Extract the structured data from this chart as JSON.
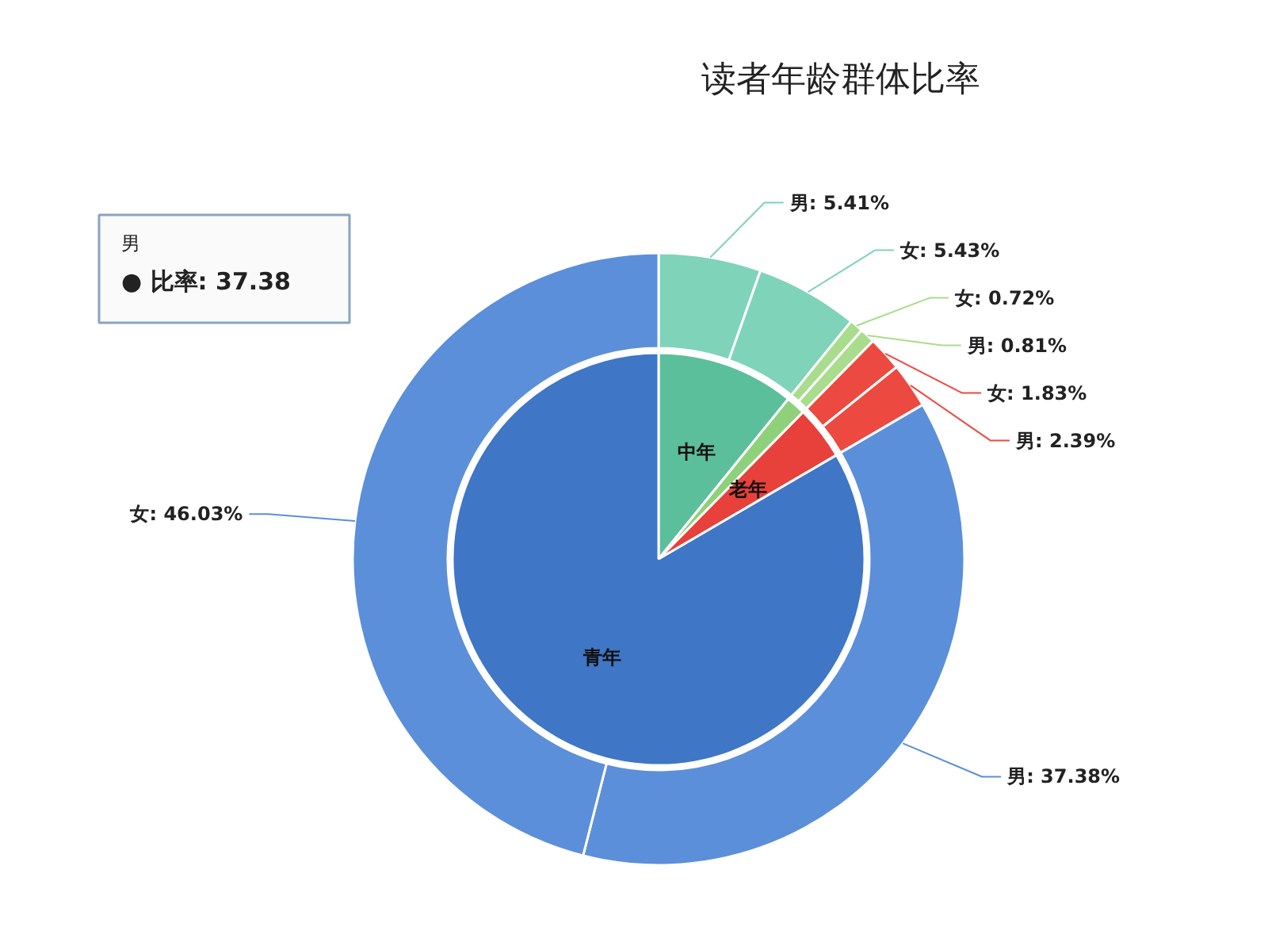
{
  "chart_data": {
    "type": "donut",
    "title": "读者年龄群体比率",
    "series": [
      {
        "values": [
          10.84,
          1.53,
          4.22,
          83.41
        ],
        "colors": [
          "#5cbf9b",
          "#8fd17a",
          "#e8403a",
          "#3f76c6"
        ],
        "value_labels": [
          "中年",
          null,
          "老年",
          "青年"
        ]
      },
      {
        "values": [
          5.41,
          5.43,
          0.72,
          0.81,
          1.83,
          2.39,
          37.38,
          46.03
        ],
        "colors": [
          "#7fd3b9",
          "#7fd3b9",
          "#a9dc8c",
          "#a9dc8c",
          "#ec4a40",
          "#ec4a40",
          "#5b8fd9",
          "#5b8fd9"
        ],
        "value_labels": [
          "男: 5.41%",
          "女: 5.43%",
          "女: 0.72%",
          "男: 0.81%",
          "女: 1.83%",
          "男: 2.39%",
          "男: 37.38%",
          "女: 46.03%"
        ]
      }
    ],
    "annotations": [
      "男",
      "● 比率: 37.38"
    ]
  }
}
